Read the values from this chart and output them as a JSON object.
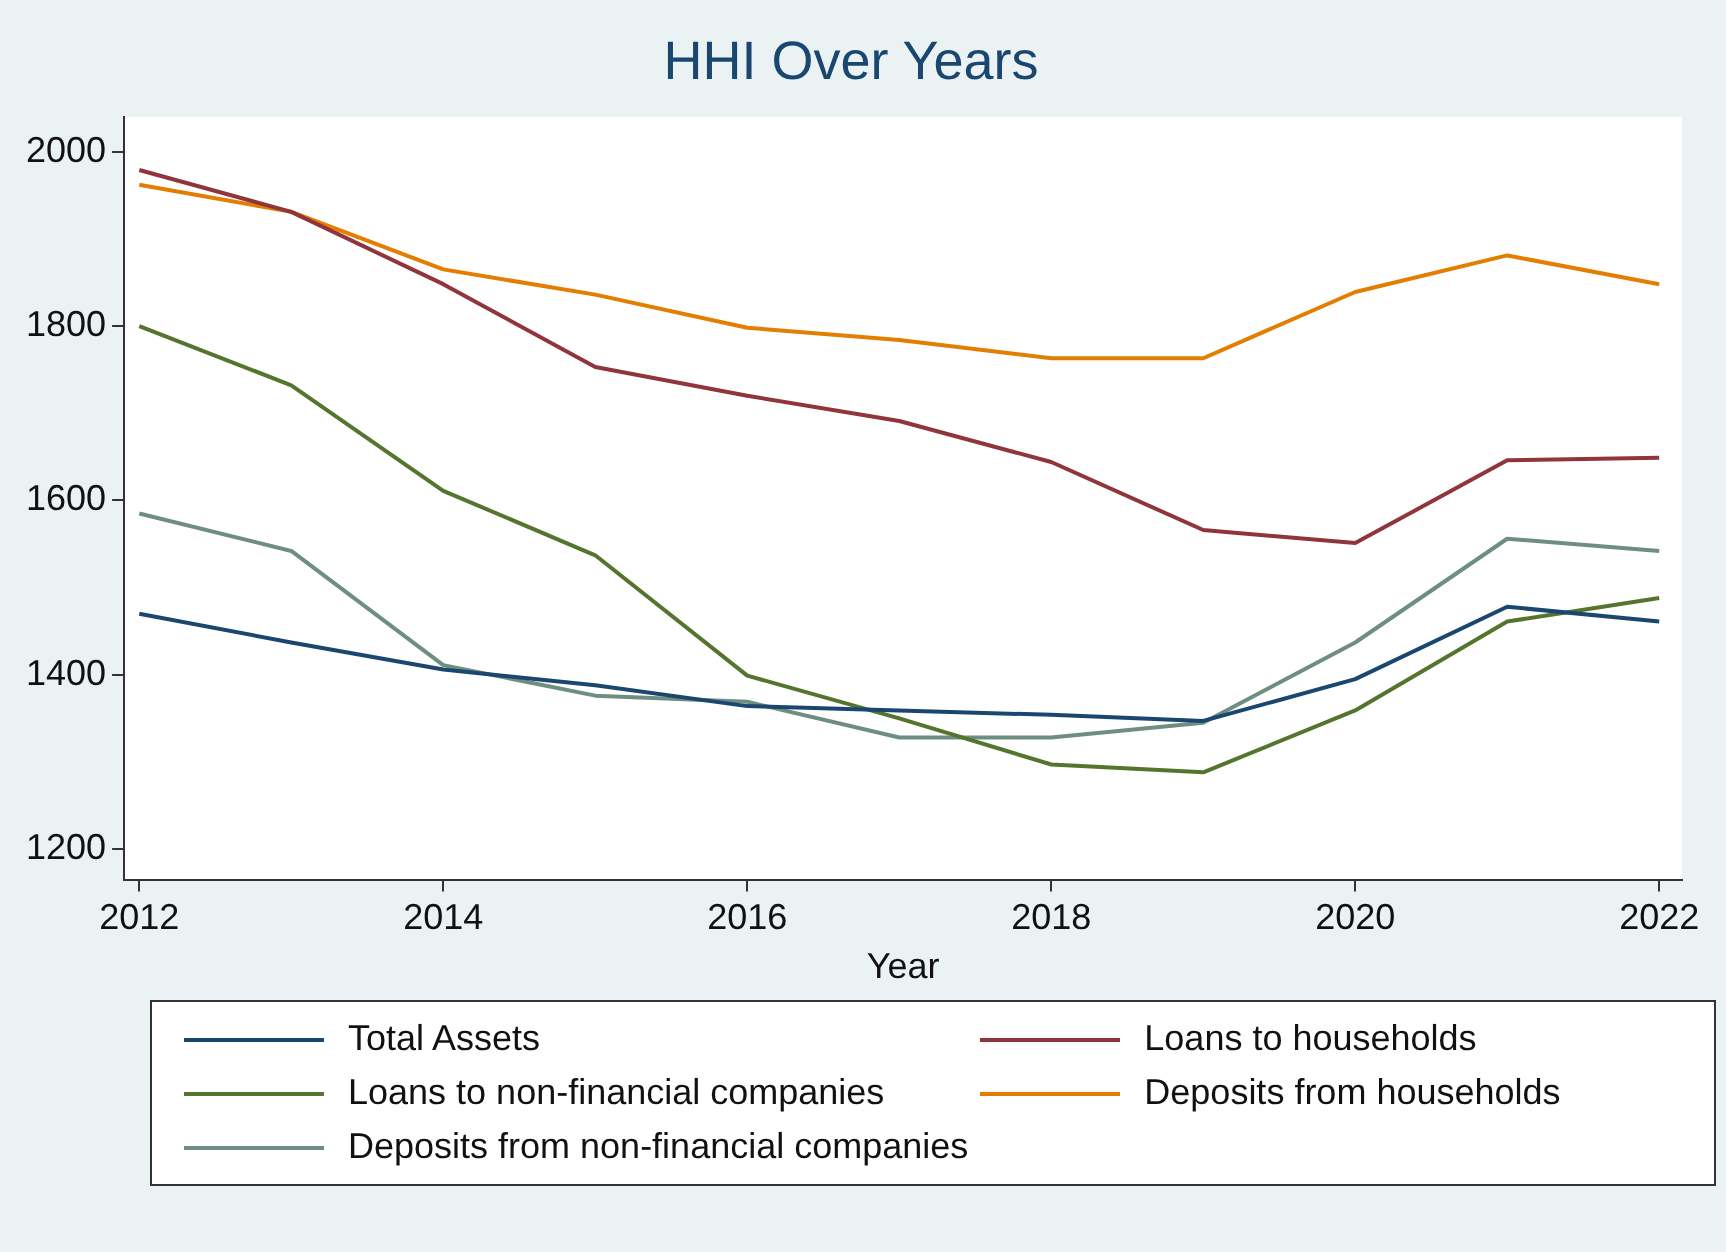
{
  "chart_data": {
    "type": "line",
    "title": "HHI Over Years",
    "xlabel": "Year",
    "x": [
      2012,
      2013,
      2014,
      2015,
      2016,
      2017,
      2018,
      2019,
      2020,
      2021,
      2022
    ],
    "xlim": [
      2011.9,
      2022.15
    ],
    "xticks": [
      2012,
      2014,
      2016,
      2018,
      2020,
      2022
    ],
    "ylim": [
      1165,
      2040
    ],
    "yticks": [
      1200,
      1400,
      1600,
      1800,
      2000
    ],
    "grid": false,
    "legend": "bottom",
    "marker": "none",
    "line_style": "solid",
    "series": [
      {
        "name": "Total Assets",
        "color": "#1a476f",
        "values": [
          1470,
          1437,
          1406,
          1388,
          1364,
          1359,
          1354,
          1347,
          1395,
          1478,
          1461
        ]
      },
      {
        "name": "Loans to households",
        "color": "#90353b",
        "values": [
          1979,
          1931,
          1848,
          1753,
          1720,
          1691,
          1644,
          1566,
          1551,
          1646,
          1649
        ]
      },
      {
        "name": "Loans to non-financial companies",
        "color": "#55752f",
        "values": [
          1800,
          1732,
          1611,
          1537,
          1399,
          1350,
          1297,
          1288,
          1359,
          1461,
          1488
        ]
      },
      {
        "name": "Deposits from households",
        "color": "#e37e00",
        "values": [
          1962,
          1931,
          1865,
          1836,
          1798,
          1784,
          1763,
          1763,
          1839,
          1881,
          1848
        ]
      },
      {
        "name": "Deposits from non-financial companies",
        "color": "#6e8e84",
        "values": [
          1585,
          1542,
          1411,
          1376,
          1369,
          1328,
          1328,
          1345,
          1437,
          1556,
          1542
        ]
      }
    ]
  }
}
